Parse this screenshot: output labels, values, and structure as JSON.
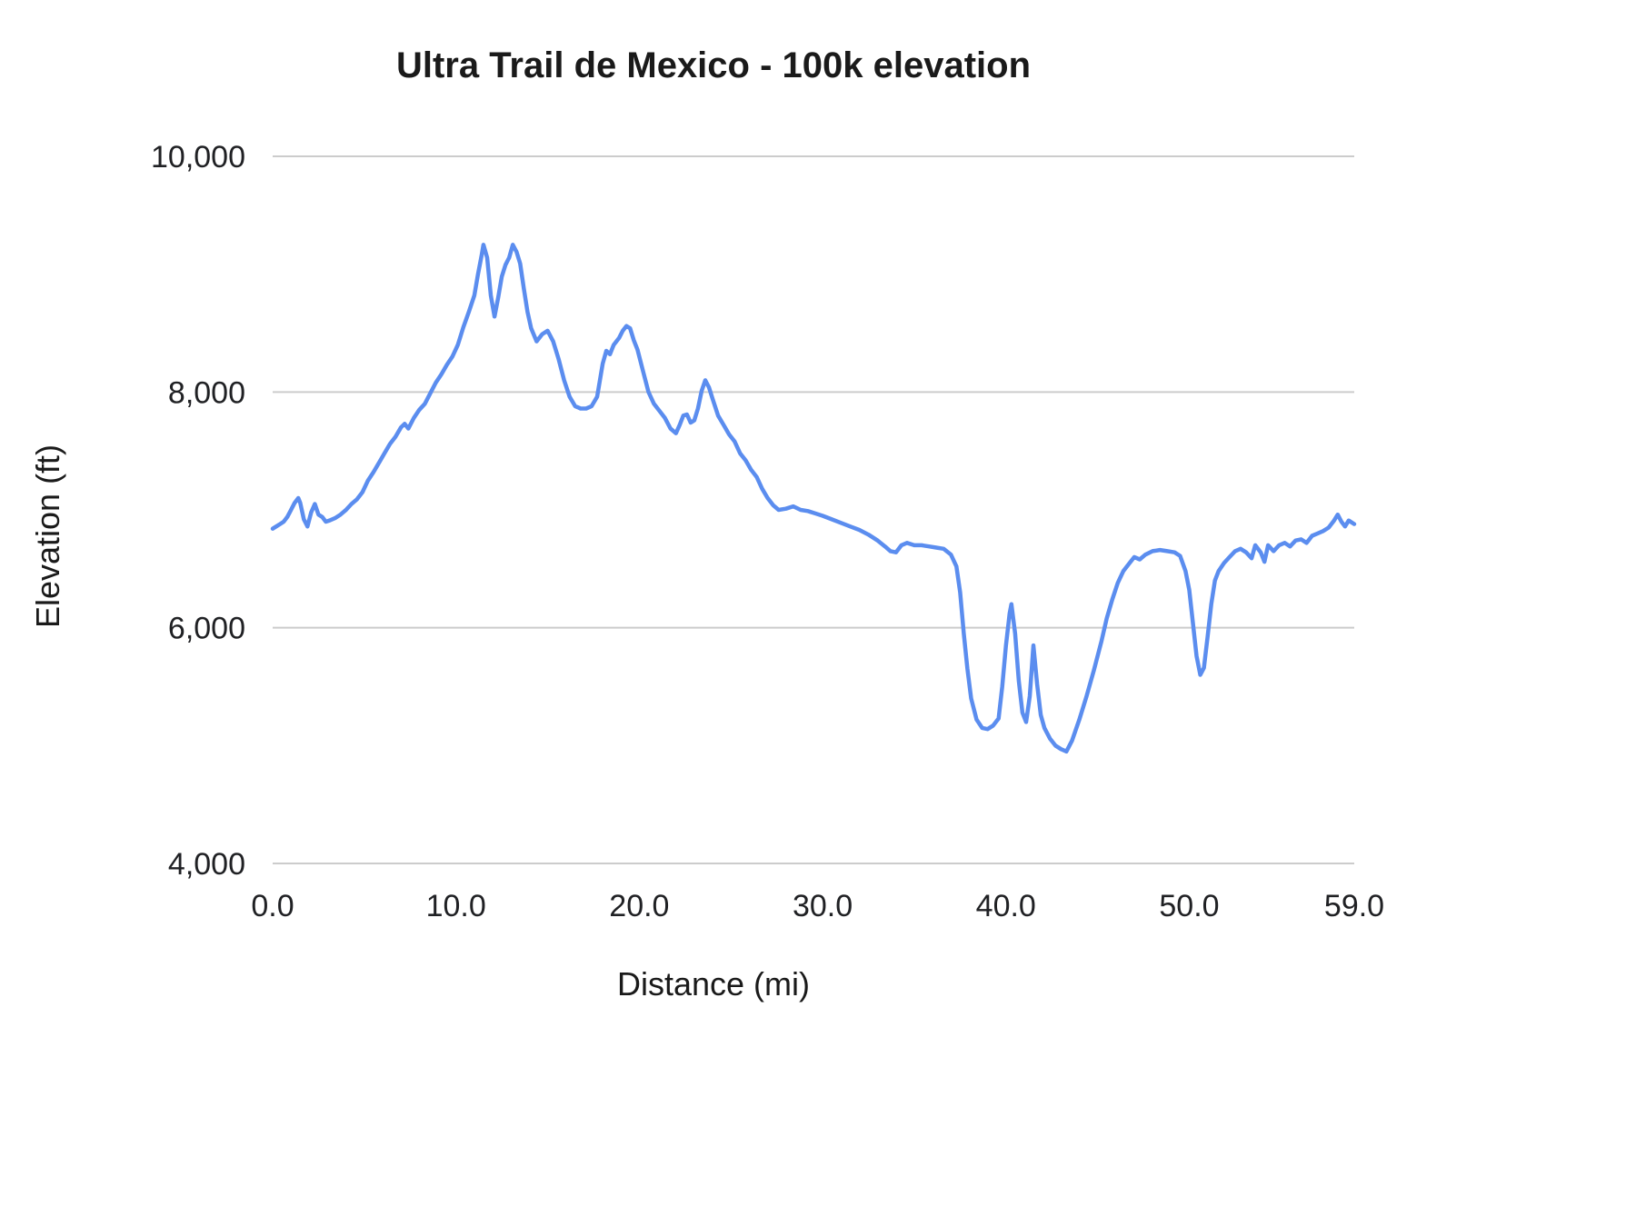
{
  "chart": {
    "title": "Ultra Trail de Mexico - 100k elevation",
    "x_axis_title": "Distance (mi)",
    "y_axis_title": "Elevation (ft)"
  },
  "chart_data": {
    "type": "line",
    "title": "Ultra Trail de Mexico - 100k elevation",
    "xlabel": "Distance (mi)",
    "ylabel": "Elevation (ft)",
    "xlim": [
      0,
      59
    ],
    "ylim": [
      4000,
      10000
    ],
    "grid": "horizontal-only",
    "legend": "none",
    "line_color": "#5b8def",
    "gridline_color": "#cccccc",
    "tick_label_color": "#202124",
    "x_ticks": [
      {
        "v": 0,
        "label": "0.0"
      },
      {
        "v": 10,
        "label": "10.0"
      },
      {
        "v": 20,
        "label": "20.0"
      },
      {
        "v": 30,
        "label": "30.0"
      },
      {
        "v": 40,
        "label": "40.0"
      },
      {
        "v": 50,
        "label": "50.0"
      },
      {
        "v": 59,
        "label": "59.0"
      }
    ],
    "y_ticks": [
      {
        "v": 4000,
        "label": "4,000"
      },
      {
        "v": 6000,
        "label": "6,000"
      },
      {
        "v": 8000,
        "label": "8,000"
      },
      {
        "v": 10000,
        "label": "10,000"
      }
    ],
    "series": [
      {
        "name": "elevation",
        "points": [
          [
            0.0,
            6840
          ],
          [
            0.2,
            6860
          ],
          [
            0.4,
            6880
          ],
          [
            0.6,
            6900
          ],
          [
            0.8,
            6940
          ],
          [
            1.0,
            7000
          ],
          [
            1.2,
            7060
          ],
          [
            1.4,
            7100
          ],
          [
            1.5,
            7060
          ],
          [
            1.7,
            6920
          ],
          [
            1.9,
            6860
          ],
          [
            2.1,
            6980
          ],
          [
            2.3,
            7050
          ],
          [
            2.5,
            6960
          ],
          [
            2.7,
            6940
          ],
          [
            2.9,
            6900
          ],
          [
            3.1,
            6910
          ],
          [
            3.4,
            6930
          ],
          [
            3.7,
            6960
          ],
          [
            4.0,
            7000
          ],
          [
            4.3,
            7050
          ],
          [
            4.6,
            7090
          ],
          [
            4.9,
            7150
          ],
          [
            5.2,
            7250
          ],
          [
            5.5,
            7320
          ],
          [
            5.8,
            7400
          ],
          [
            6.1,
            7480
          ],
          [
            6.4,
            7560
          ],
          [
            6.7,
            7620
          ],
          [
            7.0,
            7700
          ],
          [
            7.2,
            7730
          ],
          [
            7.4,
            7690
          ],
          [
            7.7,
            7780
          ],
          [
            8.0,
            7850
          ],
          [
            8.3,
            7900
          ],
          [
            8.6,
            7990
          ],
          [
            8.9,
            8080
          ],
          [
            9.2,
            8150
          ],
          [
            9.5,
            8230
          ],
          [
            9.8,
            8300
          ],
          [
            10.1,
            8400
          ],
          [
            10.4,
            8550
          ],
          [
            10.7,
            8680
          ],
          [
            11.0,
            8820
          ],
          [
            11.2,
            9000
          ],
          [
            11.4,
            9160
          ],
          [
            11.5,
            9250
          ],
          [
            11.7,
            9140
          ],
          [
            11.9,
            8820
          ],
          [
            12.1,
            8640
          ],
          [
            12.3,
            8800
          ],
          [
            12.5,
            8980
          ],
          [
            12.7,
            9080
          ],
          [
            12.9,
            9140
          ],
          [
            13.1,
            9250
          ],
          [
            13.3,
            9190
          ],
          [
            13.5,
            9090
          ],
          [
            13.7,
            8880
          ],
          [
            13.9,
            8680
          ],
          [
            14.1,
            8540
          ],
          [
            14.4,
            8430
          ],
          [
            14.7,
            8490
          ],
          [
            15.0,
            8520
          ],
          [
            15.3,
            8430
          ],
          [
            15.6,
            8280
          ],
          [
            15.9,
            8100
          ],
          [
            16.2,
            7960
          ],
          [
            16.5,
            7880
          ],
          [
            16.8,
            7860
          ],
          [
            17.1,
            7860
          ],
          [
            17.4,
            7880
          ],
          [
            17.7,
            7960
          ],
          [
            18.0,
            8240
          ],
          [
            18.2,
            8350
          ],
          [
            18.4,
            8320
          ],
          [
            18.6,
            8400
          ],
          [
            18.9,
            8460
          ],
          [
            19.1,
            8520
          ],
          [
            19.3,
            8560
          ],
          [
            19.5,
            8540
          ],
          [
            19.7,
            8440
          ],
          [
            19.9,
            8360
          ],
          [
            20.2,
            8180
          ],
          [
            20.5,
            8000
          ],
          [
            20.8,
            7900
          ],
          [
            21.1,
            7840
          ],
          [
            21.4,
            7780
          ],
          [
            21.7,
            7690
          ],
          [
            22.0,
            7650
          ],
          [
            22.2,
            7720
          ],
          [
            22.4,
            7800
          ],
          [
            22.6,
            7810
          ],
          [
            22.8,
            7740
          ],
          [
            23.0,
            7760
          ],
          [
            23.2,
            7860
          ],
          [
            23.4,
            8010
          ],
          [
            23.6,
            8100
          ],
          [
            23.8,
            8040
          ],
          [
            24.0,
            7940
          ],
          [
            24.3,
            7800
          ],
          [
            24.6,
            7720
          ],
          [
            24.9,
            7640
          ],
          [
            25.2,
            7580
          ],
          [
            25.5,
            7480
          ],
          [
            25.8,
            7420
          ],
          [
            26.1,
            7340
          ],
          [
            26.4,
            7280
          ],
          [
            26.7,
            7180
          ],
          [
            27.0,
            7100
          ],
          [
            27.3,
            7040
          ],
          [
            27.6,
            7000
          ],
          [
            28.0,
            7010
          ],
          [
            28.4,
            7030
          ],
          [
            28.8,
            7000
          ],
          [
            29.2,
            6990
          ],
          [
            29.6,
            6970
          ],
          [
            30.0,
            6950
          ],
          [
            30.5,
            6920
          ],
          [
            31.0,
            6890
          ],
          [
            31.5,
            6860
          ],
          [
            32.0,
            6830
          ],
          [
            32.5,
            6790
          ],
          [
            33.0,
            6740
          ],
          [
            33.4,
            6690
          ],
          [
            33.7,
            6650
          ],
          [
            34.0,
            6640
          ],
          [
            34.3,
            6700
          ],
          [
            34.6,
            6720
          ],
          [
            35.0,
            6700
          ],
          [
            35.4,
            6700
          ],
          [
            35.8,
            6690
          ],
          [
            36.2,
            6680
          ],
          [
            36.6,
            6670
          ],
          [
            37.0,
            6620
          ],
          [
            37.3,
            6520
          ],
          [
            37.5,
            6300
          ],
          [
            37.7,
            5950
          ],
          [
            37.9,
            5650
          ],
          [
            38.1,
            5400
          ],
          [
            38.4,
            5220
          ],
          [
            38.7,
            5150
          ],
          [
            39.0,
            5140
          ],
          [
            39.3,
            5170
          ],
          [
            39.6,
            5230
          ],
          [
            39.8,
            5500
          ],
          [
            40.0,
            5850
          ],
          [
            40.2,
            6120
          ],
          [
            40.3,
            6200
          ],
          [
            40.5,
            5950
          ],
          [
            40.7,
            5550
          ],
          [
            40.9,
            5280
          ],
          [
            41.1,
            5200
          ],
          [
            41.3,
            5420
          ],
          [
            41.5,
            5850
          ],
          [
            41.7,
            5520
          ],
          [
            41.9,
            5260
          ],
          [
            42.1,
            5150
          ],
          [
            42.4,
            5060
          ],
          [
            42.7,
            5000
          ],
          [
            43.0,
            4970
          ],
          [
            43.3,
            4950
          ],
          [
            43.6,
            5040
          ],
          [
            44.0,
            5220
          ],
          [
            44.4,
            5420
          ],
          [
            44.8,
            5640
          ],
          [
            45.2,
            5880
          ],
          [
            45.5,
            6080
          ],
          [
            45.8,
            6240
          ],
          [
            46.1,
            6380
          ],
          [
            46.4,
            6480
          ],
          [
            46.7,
            6540
          ],
          [
            47.0,
            6600
          ],
          [
            47.3,
            6580
          ],
          [
            47.6,
            6620
          ],
          [
            48.0,
            6650
          ],
          [
            48.4,
            6660
          ],
          [
            48.8,
            6650
          ],
          [
            49.2,
            6640
          ],
          [
            49.5,
            6610
          ],
          [
            49.8,
            6480
          ],
          [
            50.0,
            6320
          ],
          [
            50.2,
            6040
          ],
          [
            50.4,
            5760
          ],
          [
            50.6,
            5600
          ],
          [
            50.8,
            5660
          ],
          [
            51.0,
            5920
          ],
          [
            51.2,
            6200
          ],
          [
            51.4,
            6400
          ],
          [
            51.6,
            6480
          ],
          [
            51.9,
            6550
          ],
          [
            52.2,
            6600
          ],
          [
            52.5,
            6650
          ],
          [
            52.8,
            6670
          ],
          [
            53.1,
            6640
          ],
          [
            53.4,
            6590
          ],
          [
            53.6,
            6700
          ],
          [
            53.9,
            6640
          ],
          [
            54.1,
            6560
          ],
          [
            54.3,
            6700
          ],
          [
            54.6,
            6650
          ],
          [
            54.9,
            6700
          ],
          [
            55.2,
            6720
          ],
          [
            55.5,
            6690
          ],
          [
            55.8,
            6740
          ],
          [
            56.1,
            6750
          ],
          [
            56.4,
            6720
          ],
          [
            56.7,
            6780
          ],
          [
            57.0,
            6800
          ],
          [
            57.3,
            6820
          ],
          [
            57.6,
            6850
          ],
          [
            57.9,
            6910
          ],
          [
            58.1,
            6960
          ],
          [
            58.3,
            6900
          ],
          [
            58.5,
            6860
          ],
          [
            58.7,
            6910
          ],
          [
            59.0,
            6880
          ]
        ]
      }
    ]
  }
}
